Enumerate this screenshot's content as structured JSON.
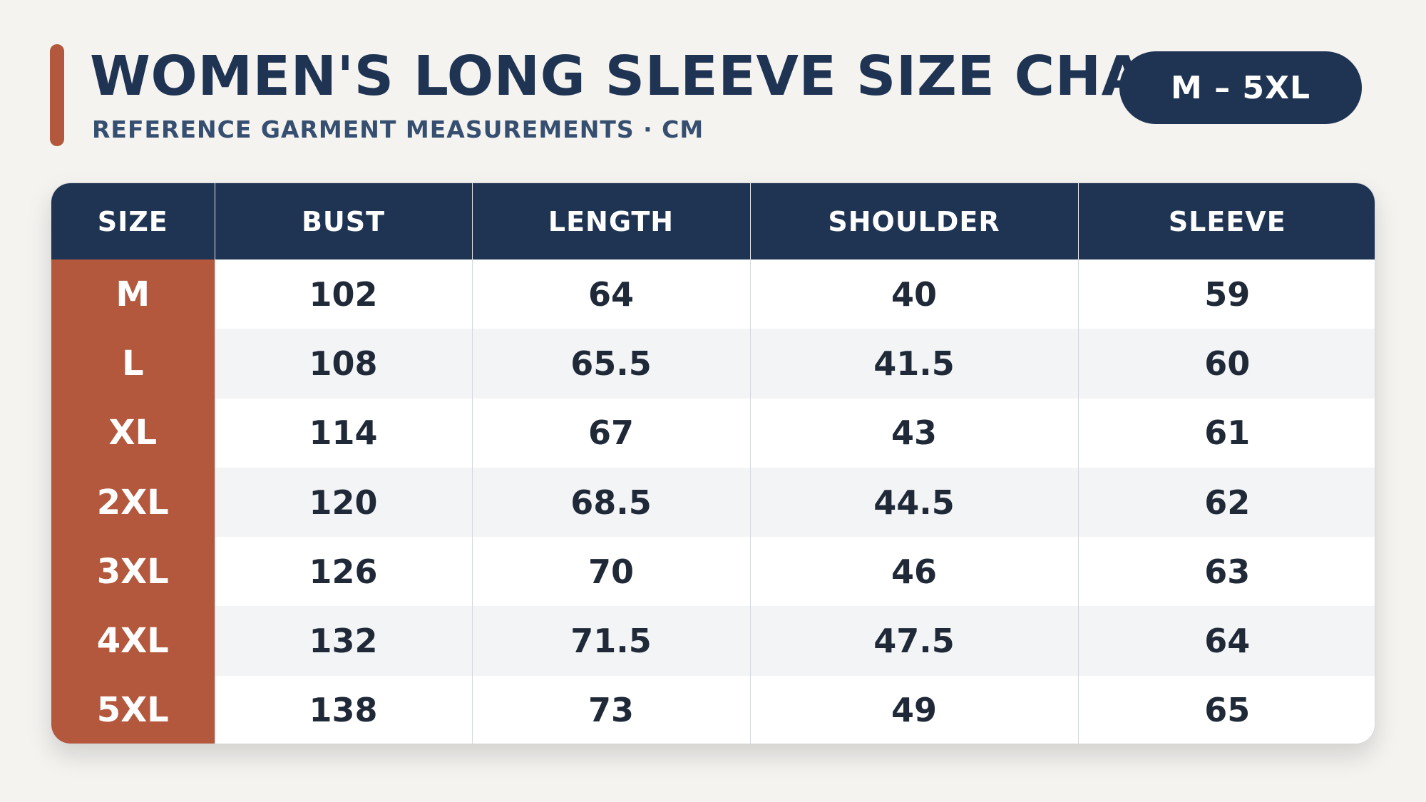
{
  "header": {
    "title": "WOMEN'S LONG SLEEVE SIZE CHART",
    "subtitle": "REFERENCE GARMENT MEASUREMENTS · CM",
    "range_badge": "M – 5XL"
  },
  "colors": {
    "navy": "#1f3352",
    "rust": "#b3573d",
    "background": "#f4f3f0",
    "row_stripe": "#f3f4f6"
  },
  "chart_data": {
    "type": "table",
    "title": "WOMEN'S LONG SLEEVE SIZE CHART",
    "subtitle": "REFERENCE GARMENT MEASUREMENTS · CM",
    "columns": [
      "SIZE",
      "BUST",
      "LENGTH",
      "SHOULDER",
      "SLEEVE"
    ],
    "rows": [
      [
        "M",
        "102",
        "64",
        "40",
        "59"
      ],
      [
        "L",
        "108",
        "65.5",
        "41.5",
        "60"
      ],
      [
        "XL",
        "114",
        "67",
        "43",
        "61"
      ],
      [
        "2XL",
        "120",
        "68.5",
        "44.5",
        "62"
      ],
      [
        "3XL",
        "126",
        "70",
        "46",
        "63"
      ],
      [
        "4XL",
        "132",
        "71.5",
        "47.5",
        "64"
      ],
      [
        "5XL",
        "138",
        "73",
        "49",
        "65"
      ]
    ]
  }
}
